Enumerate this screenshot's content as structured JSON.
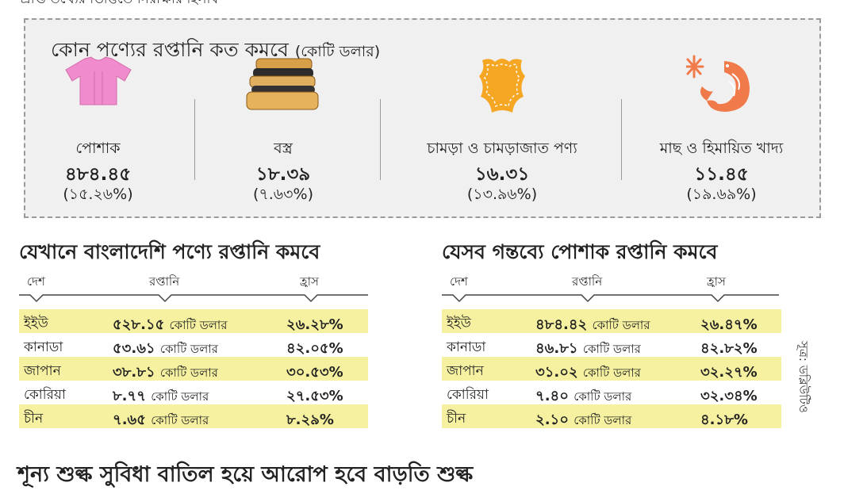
{
  "top_cut_text": "প্রাপ্ত তথ্যের ভিত্তিতে নিরীক্ষার হিসাব",
  "box": {
    "title": "কোন পণ্যের রপ্তানি কত কমবে",
    "unit": "(কোটি ডলার)",
    "products": [
      {
        "icon": "shirt-icon",
        "name": "পোশাক",
        "value": "৪৮৪.৪৫",
        "pct": "(১৫.২৬%)"
      },
      {
        "icon": "fabric-icon",
        "name": "বস্ত্র",
        "value": "১৮.৩৯",
        "pct": "(৭.৬৩%)"
      },
      {
        "icon": "leather-icon",
        "name": "চামড়া ও চামড়াজাত পণ্য",
        "value": "১৬.৩১",
        "pct": "(১৩.৯৬%)"
      },
      {
        "icon": "shrimp-icon",
        "name": "মাছ ও হিমায়িত খাদ্য",
        "value": "১১.৪৫",
        "pct": "(১৯.৬৯%)"
      }
    ]
  },
  "left_table": {
    "title": "যেখানে বাংলাদেশি পণ্যে রপ্তানি কমবে",
    "headers": [
      "দেশ",
      "রপ্তানি",
      "হ্রাস"
    ],
    "unit": "কোটি ডলার",
    "rows": [
      {
        "country": "ইইউ",
        "value": "৫২৮.১৫",
        "pct": "২৬.২৮%"
      },
      {
        "country": "কানাডা",
        "value": "৫৩.৬১",
        "pct": "৪২.০৫%"
      },
      {
        "country": "জাপান",
        "value": "৩৮.৮১",
        "pct": "৩০.৫৩%"
      },
      {
        "country": "কোরিয়া",
        "value": "৮.৭৭",
        "pct": "২৭.৫৩%"
      },
      {
        "country": "চীন",
        "value": "৭.৬৫",
        "pct": "৮.২৯%"
      }
    ]
  },
  "right_table": {
    "title": "যেসব গন্তব্যে পোশাক রপ্তানি কমবে",
    "headers": [
      "দেশ",
      "রপ্তানি",
      "হ্রাস"
    ],
    "unit": "কোটি ডলার",
    "rows": [
      {
        "country": "ইইউ",
        "value": "৪৮৪.৪২",
        "pct": "২৬.৪৭%"
      },
      {
        "country": "কানাডা",
        "value": "৪৬.৮১",
        "pct": "৪২.৮২%"
      },
      {
        "country": "জাপান",
        "value": "৩১.০২",
        "pct": "৩২.২৭%"
      },
      {
        "country": "কোরিয়া",
        "value": "৭.৪০",
        "pct": "৩২.৩৪%"
      },
      {
        "country": "চীন",
        "value": "২.১০",
        "pct": "৪.১৮%"
      }
    ]
  },
  "source": "সূত্র: ডব্লিউটিও",
  "bottom_cut_text": "শূন্য শুল্ক সুবিধা বাতিল হয়ে আরোপ হবে বাড়তি শুল্ক",
  "colors": {
    "highlight": "#f6f1a0",
    "box_bg": "#f0f0f0",
    "shirt": "#f08ccd",
    "leather": "#f5a623",
    "shrimp": "#f07a4a"
  }
}
